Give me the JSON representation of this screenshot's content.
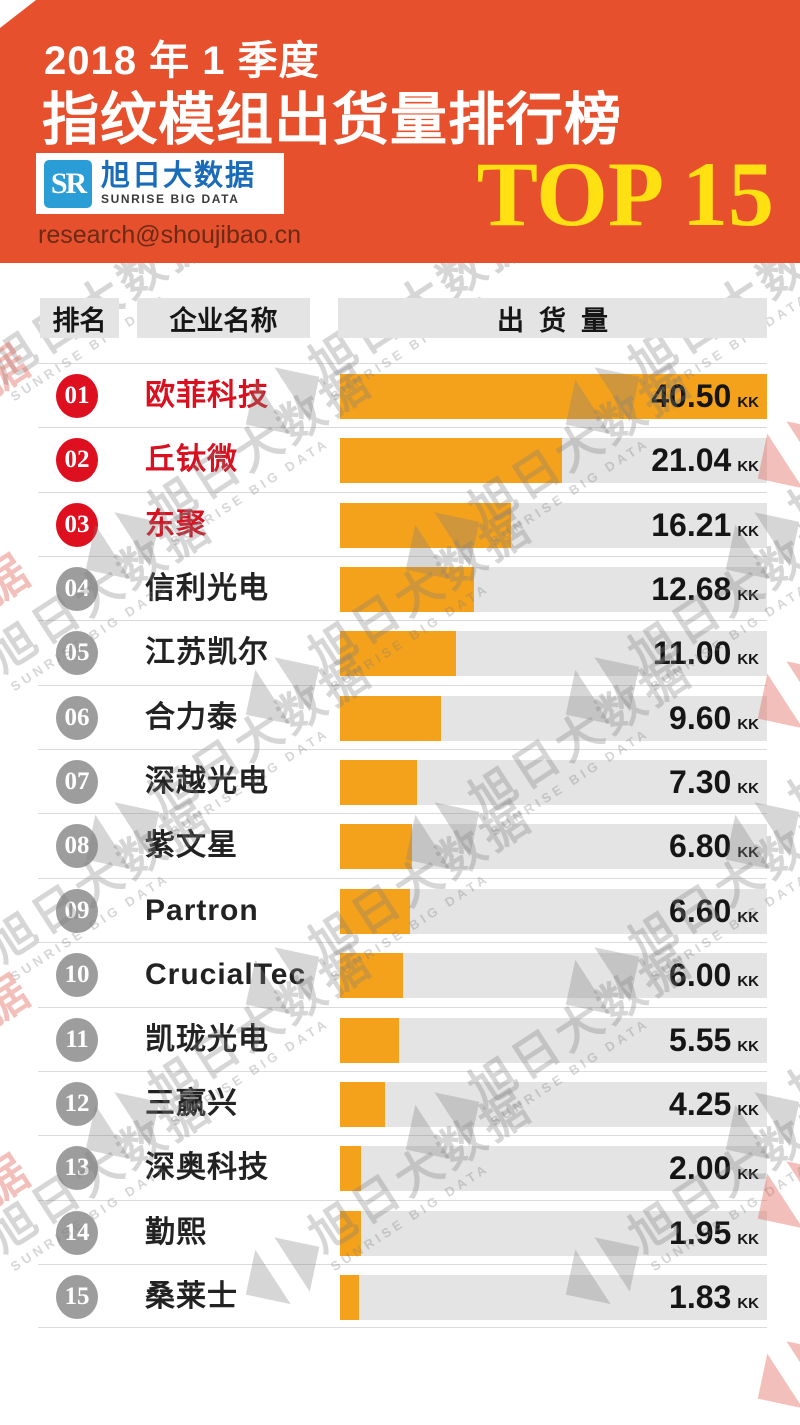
{
  "header": {
    "period": "2018 年 1 季度",
    "title": "指纹模组出货量排行榜",
    "logo_text": "SR",
    "brand_cn": "旭日大数据",
    "brand_en": "SUNRISE BIG DATA",
    "email": "research@shoujibao.cn",
    "top_badge": "TOP 15",
    "colors": {
      "banner": "#E7502D",
      "top_badge_yellow": "#FFE013",
      "logo_blue": "#2B9DD6",
      "brand_blue": "#1A6BB8"
    }
  },
  "table": {
    "columns": [
      "排名",
      "企业名称",
      "出货量"
    ]
  },
  "watermark": {
    "cn": "旭日大数据",
    "en": "SUNRISE BIG DATA"
  },
  "chart_data": {
    "type": "bar",
    "orientation": "horizontal",
    "title": "2018年1季度 指纹模组出货量排行榜 TOP 15",
    "unit": "KK",
    "xlim": [
      0,
      40.5
    ],
    "grid": false,
    "ranks": [
      "01",
      "02",
      "03",
      "04",
      "05",
      "06",
      "07",
      "08",
      "09",
      "10",
      "11",
      "12",
      "13",
      "14",
      "15"
    ],
    "categories": [
      "欧菲科技",
      "丘钛微",
      "东聚",
      "信利光电",
      "江苏凯尔",
      "合力泰",
      "深越光电",
      "紫文星",
      "Partron",
      "CrucialTec",
      "凯珑光电",
      "三赢兴",
      "深奥科技",
      "勤熙",
      "桑莱士"
    ],
    "values": [
      40.5,
      21.04,
      16.21,
      12.68,
      11.0,
      9.6,
      7.3,
      6.8,
      6.6,
      6.0,
      5.55,
      4.25,
      2.0,
      1.95,
      1.83
    ],
    "display_values": [
      "40.50",
      "21.04",
      "16.21",
      "12.68",
      "11.00",
      "9.60",
      "7.30",
      "6.80",
      "6.60",
      "6.00",
      "5.55",
      "4.25",
      "2.00",
      "1.95",
      "1.83"
    ],
    "bar_color": "#F4A11B",
    "track_color": "#E4E4E4",
    "top3_color": "#DE0F1F",
    "rank_gray_color": "#9D9D9D"
  }
}
